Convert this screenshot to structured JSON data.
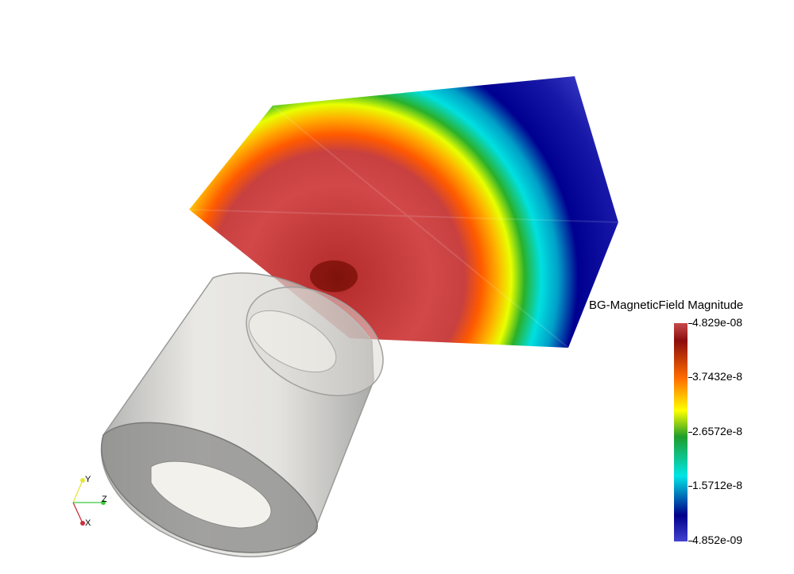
{
  "scalar_bar": {
    "title": "BG-MagneticField Magnitude",
    "labels": [
      "4.829e-08",
      "3.7432e-8",
      "2.6572e-8",
      "1.5712e-8",
      "4.852e-09"
    ],
    "colors": [
      "#c84a4a",
      "#8b0d0d",
      "#ff6a00",
      "#ffff00",
      "#1f9d2a",
      "#00e5e5",
      "#00008b",
      "#4343d0"
    ]
  },
  "axes": {
    "x_label": "X",
    "y_label": "Y",
    "z_label": "Z",
    "x_color": "#c8323c",
    "y_color": "#e6e63c",
    "z_color": "#3cc83c"
  },
  "scene": {
    "cylinder_color": "#cfcfcc"
  }
}
